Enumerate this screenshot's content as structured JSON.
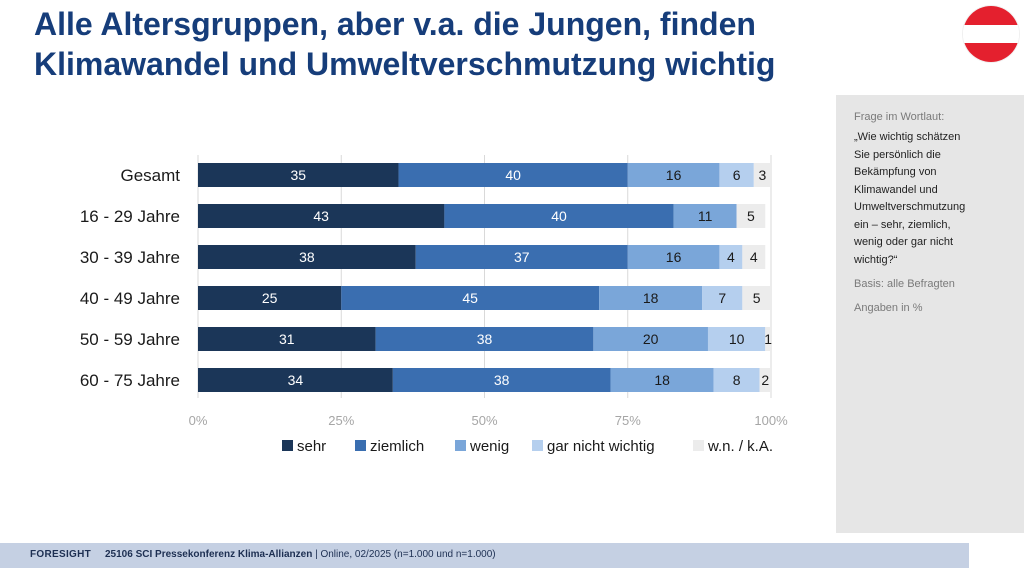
{
  "title": {
    "line1": "Alle Altersgruppen, aber v.a. die Jungen, finden",
    "line2": "Klimawandel und Umweltverschmutzung wichtig"
  },
  "flag": {
    "icon": "austria-flag-icon",
    "colors": [
      "#e4202e",
      "#ffffff",
      "#e4202e"
    ]
  },
  "side_panel": {
    "question_label": "Frage im Wortlaut:",
    "question_lines": [
      "„Wie wichtig schätzen",
      "Sie persönlich die",
      "Bekämpfung von",
      "Klimawandel und",
      "Umweltverschmutzung",
      "ein – sehr, ziemlich,",
      "wenig oder gar nicht",
      "wichtig?“"
    ],
    "basis": "Basis: alle Befragten",
    "units": "Angaben in %"
  },
  "footer": {
    "brand": "FORESIGHT",
    "project": "25106 SCI Pressekonferenz Klima-Allianzen",
    "details": " | Online, 02/2025 (n=1.000 und n=1.000)"
  },
  "chart_data": {
    "type": "bar",
    "orientation": "horizontal",
    "stacked": true,
    "title": "",
    "xlabel": "",
    "ylabel": "",
    "xlim": [
      0,
      100
    ],
    "x_ticks": [
      "0%",
      "25%",
      "50%",
      "75%",
      "100%"
    ],
    "grid": true,
    "legend_position": "bottom",
    "categories": [
      "Gesamt",
      "16 - 29 Jahre",
      "30 - 39 Jahre",
      "40 - 49 Jahre",
      "50 - 59 Jahre",
      "60 - 75 Jahre"
    ],
    "series": [
      {
        "name": "sehr",
        "color": "#1b3658",
        "label_color": "#ffffff",
        "values": [
          35,
          43,
          38,
          25,
          31,
          34
        ]
      },
      {
        "name": "ziemlich",
        "color": "#3a6eb0",
        "label_color": "#ffffff",
        "values": [
          40,
          40,
          37,
          45,
          38,
          38
        ]
      },
      {
        "name": "wenig",
        "color": "#7aa6d9",
        "label_color": "#1a1a1a",
        "values": [
          16,
          11,
          16,
          18,
          20,
          18
        ]
      },
      {
        "name": "gar nicht wichtig",
        "color": "#b5cfee",
        "label_color": "#1a1a1a",
        "values": [
          6,
          0,
          4,
          7,
          10,
          8
        ]
      },
      {
        "name": "w.n. / k.A.",
        "color": "#ececec",
        "label_color": "#1a1a1a",
        "values": [
          3,
          5,
          4,
          5,
          1,
          2
        ]
      }
    ]
  }
}
